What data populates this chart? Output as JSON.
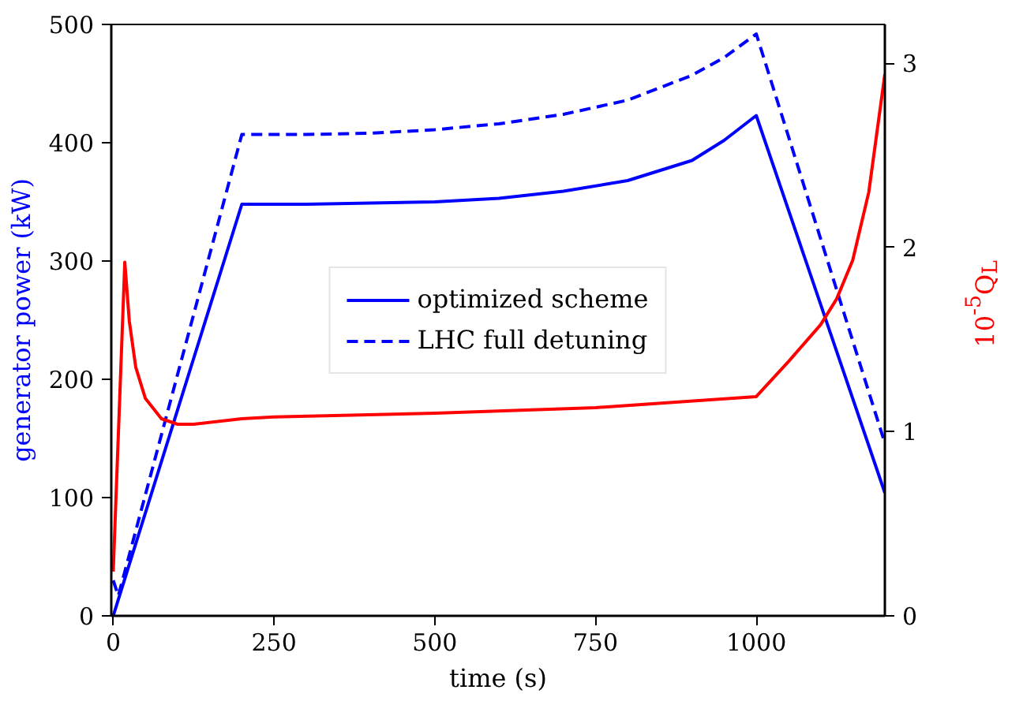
{
  "chart_data": {
    "type": "line",
    "xlabel": "time (s)",
    "ylabel": "generator power (kW)",
    "y2label": "10$^{-5}$Q$_{L}$",
    "xlim": [
      -3,
      1200
    ],
    "xticks": [
      0,
      250,
      500,
      750,
      1000
    ],
    "ylim": [
      0,
      500
    ],
    "yticks": [
      0,
      100,
      200,
      300,
      400,
      500
    ],
    "y2lim": [
      0,
      3.21
    ],
    "y2ticks": [
      0,
      1,
      2,
      3
    ],
    "grid": false,
    "legend": "center",
    "marker": "none",
    "series": [
      {
        "name": "optimized scheme",
        "color": "#0000ff",
        "line_style": "solid",
        "x": [
          0,
          200,
          300,
          400,
          500,
          600,
          700,
          800,
          900,
          950,
          1000,
          1200
        ],
        "values": [
          0,
          348,
          348,
          349,
          350,
          353,
          359,
          368,
          385,
          402,
          423,
          104
        ]
      },
      {
        "name": "LHC full detuning",
        "color": "#0000ff",
        "line_style": "dashed",
        "x": [
          0,
          8,
          200,
          300,
          400,
          500,
          600,
          700,
          800,
          900,
          950,
          1000,
          1200
        ],
        "values": [
          30,
          17,
          407,
          407,
          408,
          411,
          416,
          424,
          436,
          457,
          472,
          492,
          146
        ]
      },
      {
        "color": "#ff0000",
        "line_style": "solid",
        "axis": "y2",
        "x": [
          0,
          18,
          25,
          35,
          50,
          75,
          100,
          125,
          200,
          250,
          500,
          750,
          1000,
          1050,
          1100,
          1125,
          1150,
          1175,
          1200
        ],
        "values": [
          0.24,
          1.92,
          1.6,
          1.35,
          1.18,
          1.07,
          1.04,
          1.04,
          1.07,
          1.08,
          1.1,
          1.13,
          1.19,
          1.38,
          1.58,
          1.72,
          1.93,
          2.3,
          2.94
        ]
      }
    ]
  }
}
